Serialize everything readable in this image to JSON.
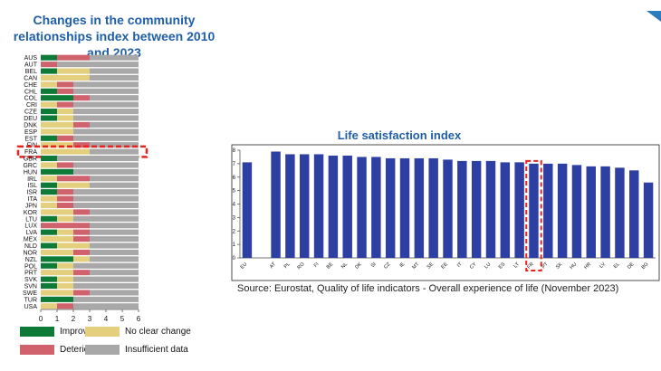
{
  "chart_data": [
    {
      "type": "bar",
      "orientation": "horizontal",
      "stacked": true,
      "title": "Changes in the community relationships index between 2010 and 2023",
      "categories": [
        "AUS",
        "AUT",
        "BEL",
        "CAN",
        "CHE",
        "CHL",
        "COL",
        "CRI",
        "CZE",
        "DEU",
        "DNK",
        "ESP",
        "EST",
        "FIN",
        "FRA",
        "GBR",
        "GRC",
        "HUN",
        "IRL",
        "ISL",
        "ISR",
        "ITA",
        "JPN",
        "KOR",
        "LTU",
        "LUX",
        "LVA",
        "MEX",
        "NLD",
        "NOR",
        "NZL",
        "POL",
        "PRT",
        "SVK",
        "SVN",
        "SWE",
        "TUR",
        "USA"
      ],
      "highlight": "FRA",
      "xlim": [
        0,
        6
      ],
      "xticks": [
        "0",
        "1",
        "2",
        "3",
        "4",
        "5",
        "6"
      ],
      "series": [
        {
          "name": "Improving",
          "color": "#0e7a37",
          "values": [
            1,
            0,
            1,
            0,
            0,
            1,
            2,
            0,
            1,
            1,
            0,
            0,
            1,
            0,
            0,
            1,
            0,
            2,
            0,
            1,
            1,
            0,
            0,
            0,
            1,
            0,
            1,
            0,
            1,
            0,
            2,
            1,
            0,
            1,
            1,
            0,
            2,
            0
          ]
        },
        {
          "name": "No clear change",
          "color": "#e3cf7d",
          "values": [
            0,
            0,
            2,
            3,
            1,
            0,
            0,
            1,
            1,
            1,
            2,
            2,
            0,
            2,
            3,
            0,
            1,
            0,
            1,
            2,
            0,
            1,
            1,
            2,
            1,
            0,
            1,
            2,
            2,
            2,
            1,
            1,
            2,
            1,
            1,
            2,
            0,
            1
          ]
        },
        {
          "name": "Deteriorating",
          "color": "#d0626d",
          "values": [
            2,
            1,
            0,
            0,
            1,
            1,
            1,
            1,
            0,
            0,
            1,
            0,
            1,
            1,
            0,
            0,
            1,
            0,
            2,
            0,
            1,
            1,
            1,
            1,
            0,
            3,
            1,
            1,
            0,
            1,
            0,
            0,
            1,
            0,
            0,
            1,
            0,
            1
          ]
        },
        {
          "name": "Insufficient data",
          "color": "#a8a8a8",
          "values": [
            3,
            5,
            3,
            3,
            4,
            4,
            3,
            4,
            4,
            4,
            3,
            4,
            4,
            3,
            3,
            5,
            4,
            4,
            3,
            3,
            4,
            4,
            4,
            3,
            4,
            3,
            3,
            3,
            3,
            3,
            3,
            4,
            3,
            4,
            4,
            3,
            4,
            4
          ]
        }
      ],
      "legend": [
        "Improving",
        "No clear change",
        "Deteriorating",
        "Insufficient data"
      ]
    },
    {
      "type": "bar",
      "title": "Life satisfaction index",
      "categories": [
        "EU",
        "AT",
        "PL",
        "RO",
        "FI",
        "BE",
        "NL",
        "DK",
        "SI",
        "CZ",
        "IE",
        "MT",
        "SE",
        "EE",
        "IT",
        "CY",
        "LU",
        "ES",
        "LT",
        "FR",
        "PT",
        "SK",
        "HU",
        "HR",
        "LV",
        "EL",
        "DE",
        "BG"
      ],
      "values": [
        7.1,
        7.9,
        7.7,
        7.7,
        7.7,
        7.6,
        7.6,
        7.5,
        7.5,
        7.4,
        7.4,
        7.4,
        7.4,
        7.3,
        7.2,
        7.2,
        7.2,
        7.1,
        7.1,
        7.0,
        7.0,
        7.0,
        6.9,
        6.8,
        6.8,
        6.7,
        6.5,
        5.6
      ],
      "highlight": "FR",
      "bar_color": "#2e3fa3",
      "ylim": [
        0,
        8
      ],
      "yticks": [
        "0",
        "1",
        "2",
        "3",
        "4",
        "5",
        "6",
        "7",
        "8"
      ],
      "source": "Source: Eurostat, Quality of life indicators - Overall experience of life (November 2023)"
    }
  ]
}
